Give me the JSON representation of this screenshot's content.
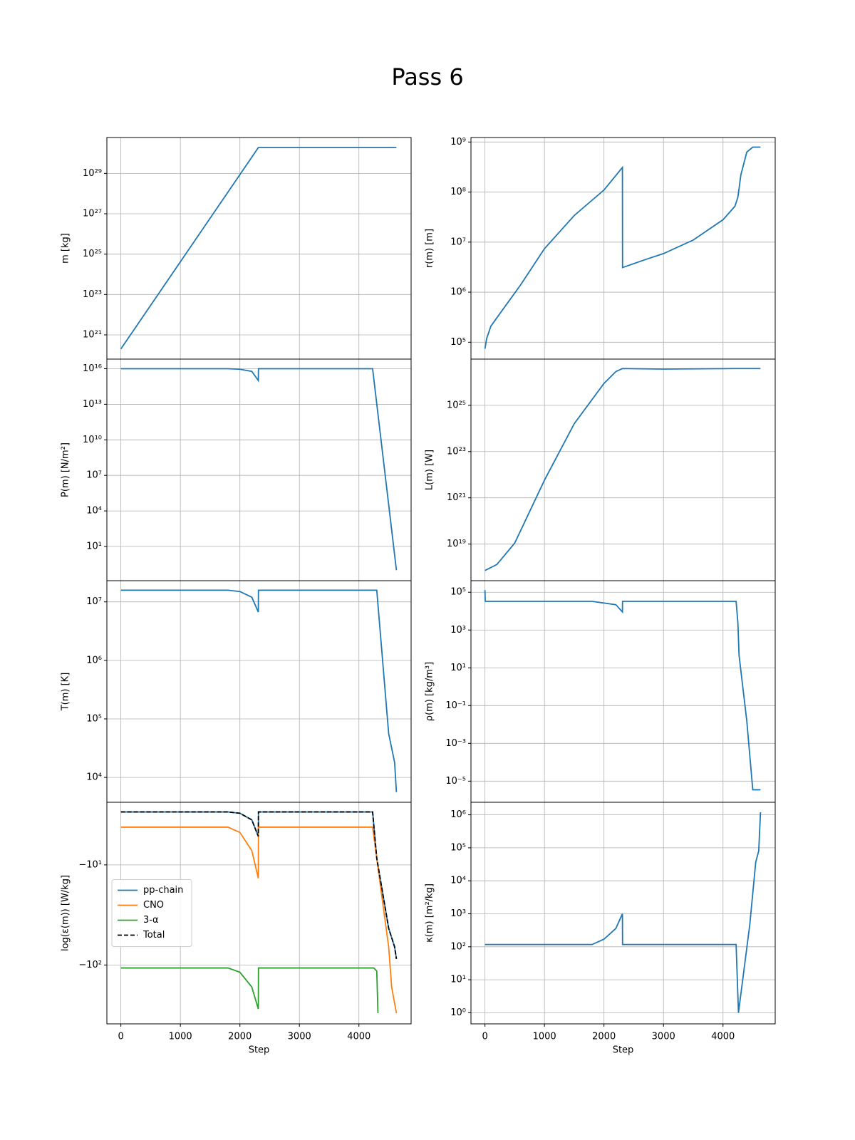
{
  "title": "Pass 6",
  "chart_data": [
    {
      "type": "line",
      "ylabel": "m [kg]",
      "yscale": "log",
      "grid": true,
      "color": "#1f77b4",
      "xlim": [
        -235,
        4877
      ],
      "xticks": [
        0,
        1000,
        2000,
        3000,
        4000
      ],
      "ylim": [
        6.3e+19,
        6e+30
      ],
      "yticks": [
        {
          "value": 1e+21,
          "label": "10²¹"
        },
        {
          "value": 1e+23,
          "label": "10²³"
        },
        {
          "value": 1e+25,
          "label": "10²⁵"
        },
        {
          "value": 1e+27,
          "label": "10²⁷"
        },
        {
          "value": 1e+29,
          "label": "10²⁹"
        }
      ],
      "x": [
        0,
        2310,
        4630
      ],
      "values": [
        2e+20,
        1.9e+30,
        1.9e+30
      ]
    },
    {
      "type": "line",
      "ylabel": "r(m) [m]",
      "yscale": "log",
      "grid": true,
      "color": "#1f77b4",
      "xlim": [
        -235,
        4877
      ],
      "xticks": [
        0,
        1000,
        2000,
        3000,
        4000
      ],
      "ylim": [
        46000.0,
        1230000000.0
      ],
      "yticks": [
        {
          "value": 100000.0,
          "label": "10⁵"
        },
        {
          "value": 1000000.0,
          "label": "10⁶"
        },
        {
          "value": 10000000.0,
          "label": "10⁷"
        },
        {
          "value": 100000000.0,
          "label": "10⁸"
        },
        {
          "value": 1000000000.0,
          "label": "10⁹"
        }
      ],
      "x": [
        0,
        30,
        100,
        300,
        600,
        1000,
        1500,
        2000,
        2310,
        2312,
        2700,
        3000,
        3500,
        4000,
        4200,
        4250,
        4300,
        4400,
        4500,
        4630
      ],
      "values": [
        74000.0,
        120000.0,
        210000.0,
        450000.0,
        1400000.0,
        7400000.0,
        34000000.0,
        110000000.0,
        310000000.0,
        3100000.0,
        4500000.0,
        5900000.0,
        11000000.0,
        28000000.0,
        52000000.0,
        79000000.0,
        220000000.0,
        630000000.0,
        790000000.0,
        790000000.0
      ]
    },
    {
      "type": "line",
      "ylabel": "P(m) [N/m²]",
      "yscale": "log",
      "grid": true,
      "color": "#1f77b4",
      "xlim": [
        -235,
        4877
      ],
      "xticks": [
        0,
        1000,
        2000,
        3000,
        4000
      ],
      "ylim": [
        0.013,
        6.5e+16
      ],
      "yticks": [
        {
          "value": 10.0,
          "label": "10¹"
        },
        {
          "value": 10000.0,
          "label": "10⁴"
        },
        {
          "value": 10000000.0,
          "label": "10⁷"
        },
        {
          "value": 10000000000.0,
          "label": "10¹⁰"
        },
        {
          "value": 10000000000000.0,
          "label": "10¹³"
        },
        {
          "value": 1e+16,
          "label": "10¹⁶"
        }
      ],
      "x": [
        0,
        1800,
        2000,
        2200,
        2310,
        2312,
        4230,
        4630
      ],
      "values": [
        1e+16,
        1e+16,
        9000000000000000.0,
        6000000000000000.0,
        1000000000000000.0,
        1e+16,
        1e+16,
        0.1
      ]
    },
    {
      "type": "line",
      "ylabel": "L(m) [W]",
      "yscale": "log",
      "grid": true,
      "color": "#1f77b4",
      "xlim": [
        -235,
        4877
      ],
      "xticks": [
        0,
        1000,
        2000,
        3000,
        4000
      ],
      "ylim": [
        2.6e+17,
        1e+27
      ],
      "yticks": [
        {
          "value": 1e+19,
          "label": "10¹⁹"
        },
        {
          "value": 1e+21,
          "label": "10²¹"
        },
        {
          "value": 1e+23,
          "label": "10²³"
        },
        {
          "value": 1e+25,
          "label": "10²⁵"
        }
      ],
      "x": [
        0,
        200,
        500,
        1000,
        1500,
        2000,
        2200,
        2310,
        3000,
        4200,
        4630
      ],
      "values": [
        7.2e+17,
        1.3e+18,
        1.1e+19,
        5.8e+21,
        1.6e+24,
        8.9e+25,
        2.9e+26,
        3.9e+26,
        3.7e+26,
        3.9e+26,
        3.9e+26
      ]
    },
    {
      "type": "line",
      "ylabel": "T(m) [K]",
      "yscale": "log",
      "grid": true,
      "color": "#1f77b4",
      "xlim": [
        -235,
        4877
      ],
      "xticks": [
        0,
        1000,
        2000,
        3000,
        4000
      ],
      "ylim": [
        3760.0,
        23000000.0
      ],
      "yticks": [
        {
          "value": 10000.0,
          "label": "10⁴"
        },
        {
          "value": 100000.0,
          "label": "10⁵"
        },
        {
          "value": 1000000.0,
          "label": "10⁶"
        },
        {
          "value": 10000000.0,
          "label": "10⁷"
        }
      ],
      "x": [
        0,
        1800,
        2000,
        2200,
        2310,
        2312,
        4300,
        4500,
        4600,
        4630
      ],
      "values": [
        15800000.0,
        15800000.0,
        15000000.0,
        12000000.0,
        6700000.0,
        15800000.0,
        15800000.0,
        56000.0,
        18000.0,
        5600.0
      ]
    },
    {
      "type": "line",
      "ylabel": "ρ(m) [kg/m³]",
      "yscale": "log",
      "grid": true,
      "color": "#1f77b4",
      "xlim": [
        -235,
        4877
      ],
      "xticks": [
        0,
        1000,
        2000,
        3000,
        4000
      ],
      "ylim": [
        7.6e-07,
        410000.0
      ],
      "yticks": [
        {
          "value": 1e-05,
          "label": "10⁻⁵"
        },
        {
          "value": 0.001,
          "label": "10⁻³"
        },
        {
          "value": 0.1,
          "label": "10⁻¹"
        },
        {
          "value": 10.0,
          "label": "10¹"
        },
        {
          "value": 1000.0,
          "label": "10³"
        },
        {
          "value": 100000.0,
          "label": "10⁵"
        }
      ],
      "x": [
        0,
        5,
        1800,
        2200,
        2310,
        2312,
        4220,
        4250,
        4270,
        4400,
        4500,
        4630
      ],
      "values": [
        130000.0,
        33000.0,
        33000.0,
        22000.0,
        9100.0,
        33000.0,
        33000.0,
        2400.0,
        45,
        0.015,
        3.5e-06,
        3.5e-06
      ]
    },
    {
      "type": "line",
      "ylabel": "log(ε(m)) [W/kg]",
      "xlabel": "Step",
      "yscale": "symlog",
      "grid": true,
      "legend": "center left",
      "xlim": [
        -235,
        4877
      ],
      "xticks": [
        0,
        1000,
        2000,
        3000,
        4000
      ],
      "ylim": [
        -387,
        -2.37
      ],
      "yticks": [
        {
          "value": -100,
          "label": "−10²"
        },
        {
          "value": -10,
          "label": "−10¹"
        }
      ],
      "series": [
        {
          "name": "pp-chain",
          "color": "#1f77b4",
          "x": [
            0,
            1800,
            2000,
            2200,
            2310,
            2312,
            4230,
            4300,
            4500,
            4600,
            4630
          ],
          "values": [
            -2.96,
            -2.96,
            -3.05,
            -3.55,
            -5.2,
            -2.96,
            -2.96,
            -8.6,
            -43,
            -66,
            -87
          ]
        },
        {
          "name": "CNO",
          "color": "#ff7f0e",
          "x": [
            0,
            1800,
            2000,
            2200,
            2310,
            2312,
            4230,
            4400,
            4500,
            4550,
            4630
          ],
          "values": [
            -4.2,
            -4.2,
            -4.74,
            -7.2,
            -13.6,
            -4.2,
            -4.2,
            -24,
            -66,
            -166,
            -302
          ]
        },
        {
          "name": "3-α",
          "color": "#2ca02c",
          "x": [
            0,
            1800,
            2000,
            2200,
            2310,
            2312,
            4250,
            4300,
            4320
          ],
          "values": [
            -107,
            -107,
            -118,
            -166,
            -275,
            -107,
            -107,
            -115,
            -302
          ]
        },
        {
          "name": "Total",
          "color": "#000000",
          "dashed": true,
          "x": [
            0,
            1800,
            2000,
            2200,
            2310,
            2312,
            4230,
            4300,
            4500,
            4600,
            4630
          ],
          "values": [
            -2.96,
            -2.96,
            -3.05,
            -3.55,
            -5.2,
            -2.96,
            -2.96,
            -8.6,
            -43,
            -66,
            -87
          ]
        }
      ]
    },
    {
      "type": "line",
      "ylabel": "κ(m) [m²/kg]",
      "xlabel": "Step",
      "yscale": "log",
      "grid": true,
      "color": "#1f77b4",
      "xlim": [
        -235,
        4877
      ],
      "xticks": [
        0,
        1000,
        2000,
        3000,
        4000
      ],
      "ylim": [
        0.46,
        2400000.0
      ],
      "yticks": [
        {
          "value": 1.0,
          "label": "10⁰"
        },
        {
          "value": 10.0,
          "label": "10¹"
        },
        {
          "value": 100.0,
          "label": "10²"
        },
        {
          "value": 1000.0,
          "label": "10³"
        },
        {
          "value": 10000.0,
          "label": "10⁴"
        },
        {
          "value": 100000.0,
          "label": "10⁵"
        },
        {
          "value": 1000000.0,
          "label": "10⁶"
        }
      ],
      "x": [
        0,
        1800,
        2000,
        2200,
        2310,
        2312,
        4220,
        4260,
        4450,
        4550,
        4600,
        4630
      ],
      "values": [
        117,
        117,
        170,
        360,
        1000,
        117,
        117,
        1.0,
        470,
        37000.0,
        80000.0,
        1200000.0
      ]
    }
  ]
}
